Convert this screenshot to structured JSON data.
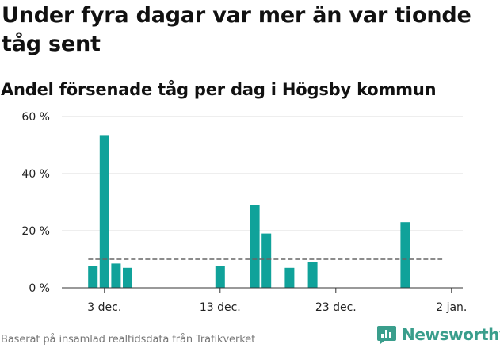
{
  "headline": "Under fyra dagar var mer än var tionde tåg sent",
  "subtitle": "Andel försenade tåg per dag i Högsby kommun",
  "source": "Baserat på insamlad realtidsdata från Trafikverket",
  "brand": {
    "name": "Newsworthy",
    "color": "#3a9e8c",
    "logo_icon": "bar-chart-speech-bubble-icon"
  },
  "colors": {
    "bar": "#10a29a",
    "grid": "#dddddd",
    "axis": "#333333",
    "reference_line": "#666666",
    "text": "#222222"
  },
  "chart_data": {
    "type": "bar",
    "title": "Andel försenade tåg per dag i Högsby kommun",
    "xlabel": "",
    "ylabel": "",
    "unit": "%",
    "ylim": [
      0,
      60
    ],
    "yticks": [
      0,
      20,
      40,
      60
    ],
    "ytick_labels": [
      "0 %",
      "20 %",
      "40 %",
      "60 %"
    ],
    "grid": true,
    "x_start_day": 0,
    "x_end_day": 34,
    "xticks": [
      {
        "day": 3,
        "label": "3 dec."
      },
      {
        "day": 13,
        "label": "13 dec."
      },
      {
        "day": 23,
        "label": "23 dec."
      },
      {
        "day": 33,
        "label": "2 jan."
      }
    ],
    "series": [
      {
        "name": "Andel försenade tåg",
        "points": [
          {
            "day": 2,
            "value": 7.5
          },
          {
            "day": 3,
            "value": 53.5
          },
          {
            "day": 4,
            "value": 8.5
          },
          {
            "day": 5,
            "value": 7.0
          },
          {
            "day": 13,
            "value": 7.5
          },
          {
            "day": 16,
            "value": 29.0
          },
          {
            "day": 17,
            "value": 19.0
          },
          {
            "day": 19,
            "value": 7.0
          },
          {
            "day": 21,
            "value": 9.0
          },
          {
            "day": 29,
            "value": 23.0
          }
        ]
      }
    ],
    "reference_line": {
      "value": 10,
      "from_day": 1.6,
      "to_day": 32.2,
      "style": "dashed"
    }
  }
}
